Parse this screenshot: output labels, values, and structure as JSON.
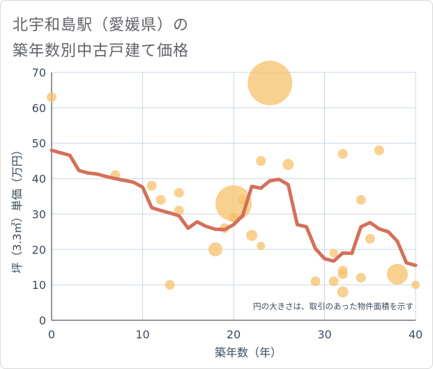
{
  "title_line1": "北宇和島駅（愛媛県）の",
  "title_line2": "築年数別中古戸建て価格",
  "chart_data": {
    "type": "scatter",
    "title": "北宇和島駅（愛媛県）の築年数別中古戸建て価格",
    "xlabel": "築年数（年）",
    "ylabel": "坪（3.3㎡）単価（万円）",
    "xlim": [
      0,
      40
    ],
    "ylim": [
      0,
      70
    ],
    "xticks": [
      0,
      10,
      20,
      30,
      40
    ],
    "yticks": [
      0,
      10,
      20,
      30,
      40,
      50,
      60,
      70
    ],
    "grid": true,
    "note": "円の大きさは、取引のあった物件面積を示す",
    "bubble_color": "#f5c26b",
    "line_color": "#d4705a",
    "points": [
      {
        "x": 0,
        "y": 63,
        "r": 7
      },
      {
        "x": 7,
        "y": 41,
        "r": 7
      },
      {
        "x": 11,
        "y": 38,
        "r": 7
      },
      {
        "x": 12,
        "y": 34,
        "r": 7
      },
      {
        "x": 13,
        "y": 10,
        "r": 7
      },
      {
        "x": 14,
        "y": 36,
        "r": 7
      },
      {
        "x": 14,
        "y": 31,
        "r": 7
      },
      {
        "x": 18,
        "y": 20,
        "r": 10
      },
      {
        "x": 19,
        "y": 26,
        "r": 7
      },
      {
        "x": 20,
        "y": 29,
        "r": 7
      },
      {
        "x": 20,
        "y": 33,
        "r": 26
      },
      {
        "x": 21,
        "y": 34,
        "r": 7
      },
      {
        "x": 22,
        "y": 24,
        "r": 8
      },
      {
        "x": 23,
        "y": 45,
        "r": 7
      },
      {
        "x": 23,
        "y": 21,
        "r": 6
      },
      {
        "x": 24,
        "y": 67,
        "r": 32
      },
      {
        "x": 26,
        "y": 44,
        "r": 8
      },
      {
        "x": 29,
        "y": 11,
        "r": 7
      },
      {
        "x": 31,
        "y": 19,
        "r": 6
      },
      {
        "x": 31,
        "y": 11,
        "r": 7
      },
      {
        "x": 32,
        "y": 47,
        "r": 7
      },
      {
        "x": 32,
        "y": 14,
        "r": 7
      },
      {
        "x": 32,
        "y": 13,
        "r": 7
      },
      {
        "x": 32,
        "y": 8,
        "r": 8
      },
      {
        "x": 34,
        "y": 34,
        "r": 7
      },
      {
        "x": 34,
        "y": 12,
        "r": 7
      },
      {
        "x": 35,
        "y": 23,
        "r": 7
      },
      {
        "x": 36,
        "y": 48,
        "r": 7
      },
      {
        "x": 38,
        "y": 13,
        "r": 15
      },
      {
        "x": 40,
        "y": 10,
        "r": 6
      }
    ],
    "trend": {
      "x": [
        0,
        1,
        2,
        3,
        4,
        5,
        6,
        7,
        8,
        9,
        10,
        11,
        12,
        13,
        14,
        15,
        16,
        17,
        18,
        19,
        20,
        21,
        22,
        23,
        24,
        25,
        26,
        27,
        28,
        29,
        30,
        31,
        32,
        33,
        34,
        35,
        36,
        37,
        38,
        39,
        40
      ],
      "y": [
        48,
        47.3,
        46.6,
        42.3,
        41.6,
        41.3,
        40.6,
        40,
        39.5,
        39,
        37.6,
        31.8,
        31,
        30.3,
        29.5,
        26,
        27.8,
        26.5,
        25.7,
        25.6,
        27,
        29.6,
        37.8,
        37.3,
        39.4,
        39.8,
        38.3,
        27,
        26.4,
        20.2,
        17.4,
        16.7,
        19,
        18.9,
        26.4,
        27.6,
        25.8,
        25,
        22.3,
        16.2,
        15.5
      ]
    }
  }
}
